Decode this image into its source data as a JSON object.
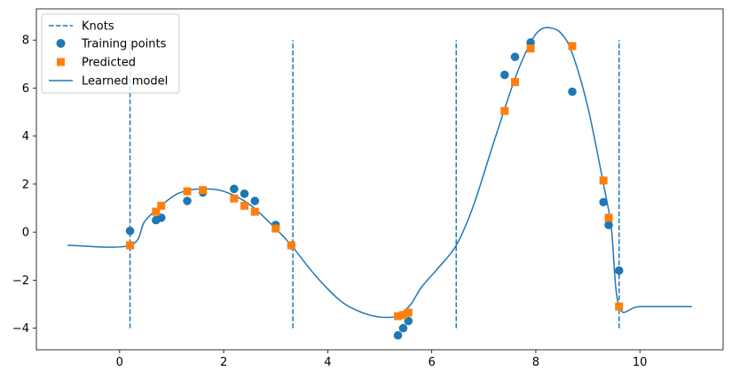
{
  "chart_data": {
    "type": "scatter",
    "title": "",
    "xlabel": "",
    "ylabel": "",
    "xlim": [
      -1.6,
      11.6
    ],
    "ylim": [
      -4.9,
      9.3
    ],
    "xticks": [
      0,
      2,
      4,
      6,
      8,
      10
    ],
    "yticks": [
      -4,
      -2,
      0,
      2,
      4,
      6,
      8
    ],
    "grid": false,
    "legend_position": "top-left",
    "colors": {
      "blue": "#1f77b4",
      "orange": "#ff7f0e"
    },
    "knots": {
      "name": "Knots",
      "x": [
        0.2,
        3.33,
        6.47,
        9.6
      ],
      "y_range": [
        -4,
        8
      ]
    },
    "training_points": {
      "name": "Training points",
      "x": [
        0.2,
        0.7,
        0.8,
        1.3,
        1.6,
        2.2,
        2.4,
        2.6,
        3.0,
        3.3,
        5.35,
        5.45,
        5.55,
        7.4,
        7.6,
        7.9,
        8.7,
        9.3,
        9.4,
        9.6
      ],
      "y": [
        0.05,
        0.5,
        0.6,
        1.3,
        1.65,
        1.8,
        1.6,
        1.3,
        0.3,
        -0.55,
        -4.3,
        -4.0,
        -3.7,
        6.55,
        7.3,
        7.9,
        5.85,
        1.25,
        0.3,
        -1.6
      ]
    },
    "predicted": {
      "name": "Predicted",
      "x": [
        0.2,
        0.7,
        0.8,
        1.3,
        1.6,
        2.2,
        2.4,
        2.6,
        3.0,
        3.3,
        5.35,
        5.45,
        5.55,
        7.4,
        7.6,
        7.9,
        8.7,
        9.3,
        9.4,
        9.6
      ],
      "y": [
        -0.55,
        0.85,
        1.1,
        1.7,
        1.75,
        1.4,
        1.1,
        0.85,
        0.15,
        -0.55,
        -3.5,
        -3.45,
        -3.35,
        5.05,
        6.25,
        7.65,
        7.75,
        2.15,
        0.6,
        -3.1
      ]
    },
    "learned_model": {
      "name": "Learned model",
      "x": [
        -1.0,
        0.2,
        0.5,
        1.0,
        1.3,
        1.6,
        2.0,
        2.5,
        3.0,
        3.3,
        3.8,
        4.3,
        4.8,
        5.2,
        5.4,
        5.6,
        5.8,
        6.1,
        6.47,
        6.8,
        7.2,
        7.6,
        7.9,
        8.1,
        8.3,
        8.5,
        8.7,
        9.0,
        9.3,
        9.45,
        9.6,
        10.0,
        11.0
      ],
      "y": [
        -0.55,
        -0.55,
        0.5,
        1.45,
        1.73,
        1.8,
        1.7,
        1.15,
        0.15,
        -0.55,
        -1.9,
        -2.95,
        -3.45,
        -3.55,
        -3.4,
        -3.0,
        -2.3,
        -1.55,
        -0.55,
        1.1,
        3.8,
        6.4,
        7.9,
        8.45,
        8.5,
        8.25,
        7.45,
        5.2,
        2.0,
        0.2,
        -3.1,
        -3.1,
        -3.1
      ]
    }
  }
}
